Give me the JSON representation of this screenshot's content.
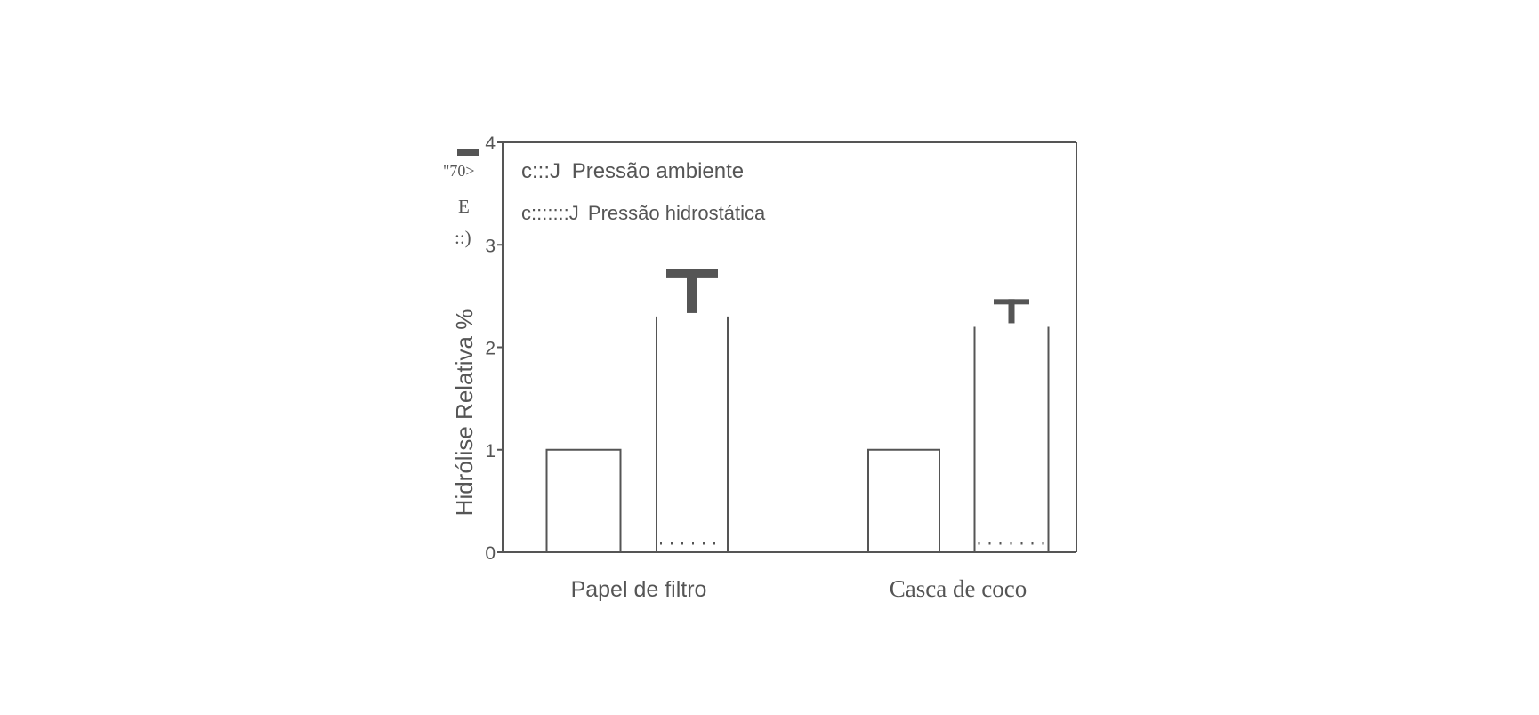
{
  "chart_data": {
    "type": "bar",
    "ylabel": "Hidrólise Relativa %",
    "ylim": [
      0,
      4
    ],
    "yticks": [
      "0",
      "1",
      "2",
      "3",
      "4"
    ],
    "categories": [
      "Papel de filtro",
      "Casca de coco"
    ],
    "series": [
      {
        "name": "Pressão ambiente",
        "values": [
          1.0,
          1.0
        ],
        "error": [
          0,
          0
        ]
      },
      {
        "name": "Pressão hidrostática",
        "values": [
          2.3,
          2.2
        ],
        "error": [
          0.46,
          0.27
        ]
      }
    ],
    "legend_position": "top-left",
    "legend_markers": [
      "c:::J",
      "c:::::::J"
    ],
    "axis_artifacts": [
      "\"70>",
      "E",
      "::)"
    ]
  }
}
